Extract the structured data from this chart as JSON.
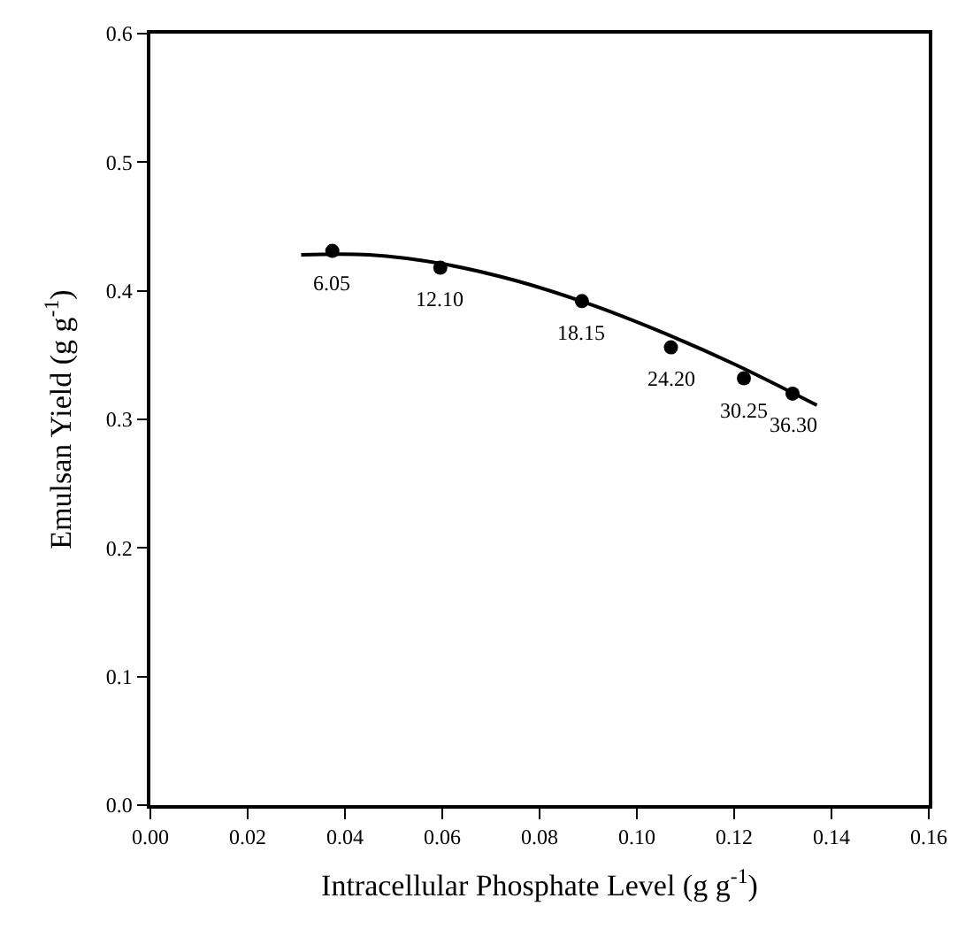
{
  "chart_data": {
    "type": "scatter",
    "xlabel": "Intracellular Phosphate Level (g g$^{-1}$)",
    "ylabel": "Emulsan Yield (g g$^{-1}$)",
    "x": [
      0.0374,
      0.0596,
      0.0887,
      0.107,
      0.122,
      0.132
    ],
    "series": [
      {
        "color": "#000000",
        "marker": "circle",
        "values": [
          0.431,
          0.418,
          0.392,
          0.356,
          0.332,
          0.32
        ]
      },
      {
        "type": "line",
        "color": "#000000",
        "marker": "none",
        "line_style": "solid",
        "x": [
          0.031,
          0.045,
          0.06,
          0.075,
          0.09,
          0.105,
          0.12,
          0.137
        ],
        "values": [
          0.428,
          0.428,
          0.421,
          0.408,
          0.39,
          0.368,
          0.343,
          0.311
        ]
      }
    ],
    "annotations": [
      {
        "text": "6.05",
        "x": 0.0374,
        "y": 0.431
      },
      {
        "text": "12.10",
        "x": 0.0596,
        "y": 0.418
      },
      {
        "text": "18.15",
        "x": 0.0887,
        "y": 0.392
      },
      {
        "text": "24.20",
        "x": 0.107,
        "y": 0.356
      },
      {
        "text": "30.25",
        "x": 0.122,
        "y": 0.332
      },
      {
        "text": "36.30",
        "x": 0.132,
        "y": 0.32
      }
    ],
    "xlim": [
      0,
      0.16
    ],
    "xticks": [
      {
        "value": 0,
        "label": "0.00"
      },
      0.02,
      0.04,
      0.06,
      0.08,
      {
        "value": 0.1,
        "label": "0.10"
      },
      0.12,
      0.14,
      0.16
    ],
    "ylim": [
      0,
      0.6
    ],
    "yticks": [
      {
        "value": 0,
        "label": "0.0"
      },
      0.1,
      0.2,
      0.3,
      0.4,
      0.5,
      0.6
    ],
    "legend": false
  }
}
